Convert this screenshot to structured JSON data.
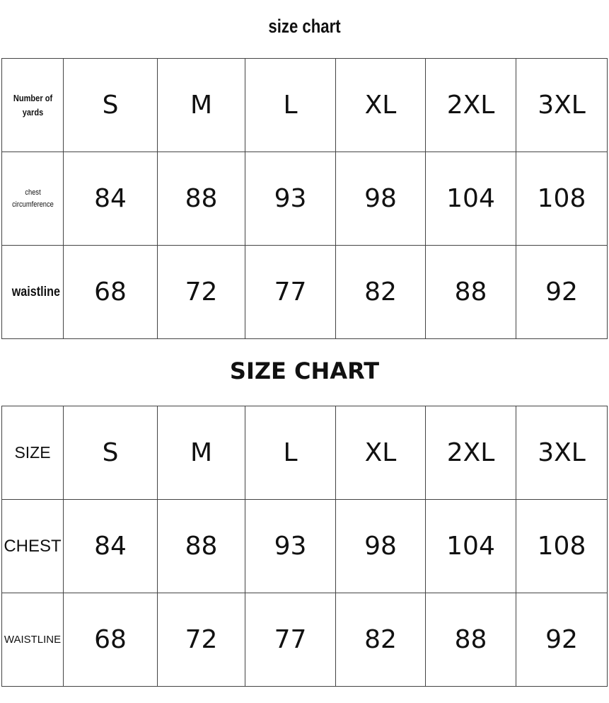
{
  "tables": [
    {
      "title": "size chart",
      "rows": [
        [
          "Number of yards",
          "S",
          "M",
          "L",
          "XL",
          "2XL",
          "3XL"
        ],
        [
          "chest circumference",
          84,
          88,
          93,
          98,
          104,
          108
        ],
        [
          "waistline",
          68,
          72,
          77,
          82,
          88,
          92
        ]
      ]
    },
    {
      "title": "SIZE CHART",
      "rows": [
        [
          "SIZE",
          "S",
          "M",
          "L",
          "XL",
          "2XL",
          "3XL"
        ],
        [
          "CHEST",
          84,
          88,
          93,
          98,
          104,
          108
        ],
        [
          "WAISTLINE",
          68,
          72,
          77,
          82,
          88,
          92
        ]
      ]
    }
  ]
}
